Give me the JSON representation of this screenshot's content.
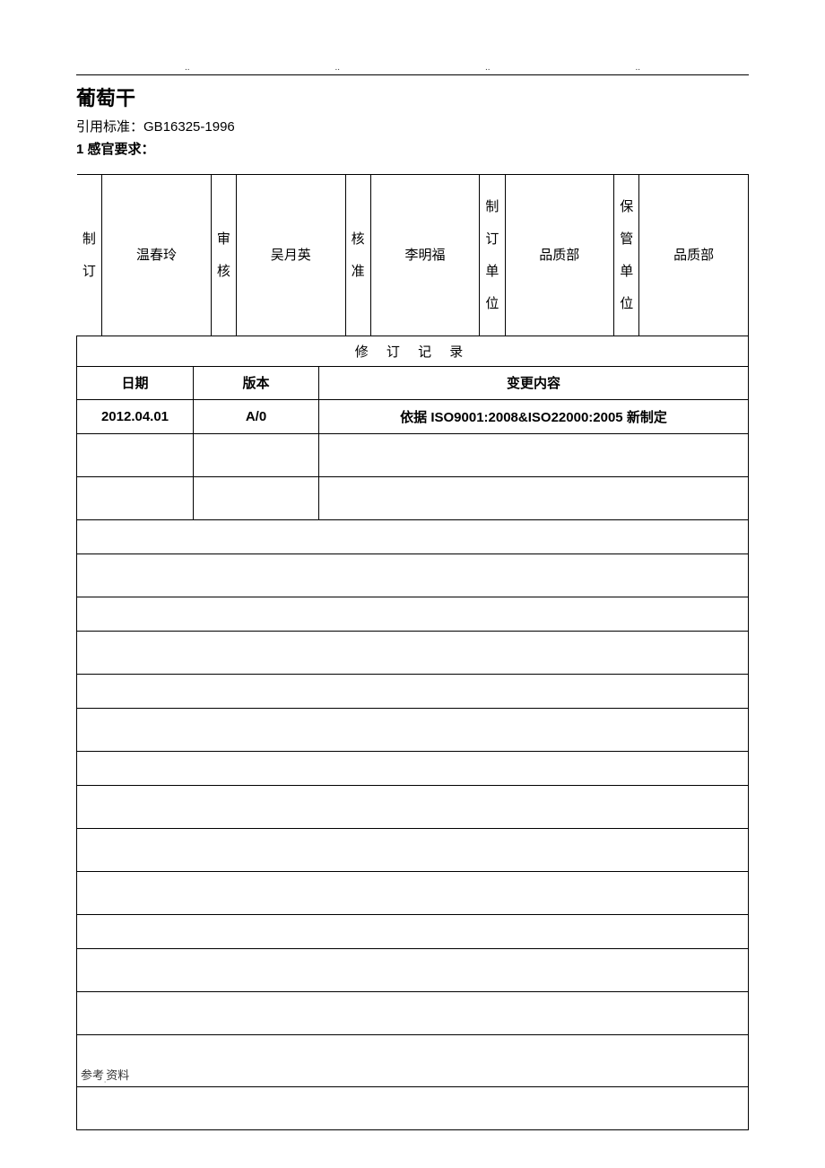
{
  "header": {
    "dots": [
      "..",
      "..",
      "..",
      ".."
    ],
    "title": "葡萄干",
    "standard_label": "引用标准：",
    "standard_value": "GB16325-1996",
    "section1": "1 感官要求："
  },
  "approval": {
    "col1_label": "制订",
    "col1_value": "温春玲",
    "col2_label": "审核",
    "col2_value": "吴月英",
    "col3_label": "核准",
    "col3_value": "李明福",
    "col4_label": "制订单位",
    "col4_value": "品质部",
    "col5_label": "保管单位",
    "col5_value": "品质部"
  },
  "revision": {
    "title": "修 订 记 录",
    "header_date": "日期",
    "header_version": "版本",
    "header_change": "变更内容",
    "row1_date": "2012.04.01",
    "row1_version": "A/0",
    "row1_change": "依据 ISO9001:2008&ISO22000:2005 新制定"
  },
  "footer": {
    "text_part1": "参考",
    "text_part2": "资料",
    "dot": "."
  },
  "style": {
    "border_color": "#000000",
    "text_color": "#000000",
    "background": "#ffffff"
  }
}
